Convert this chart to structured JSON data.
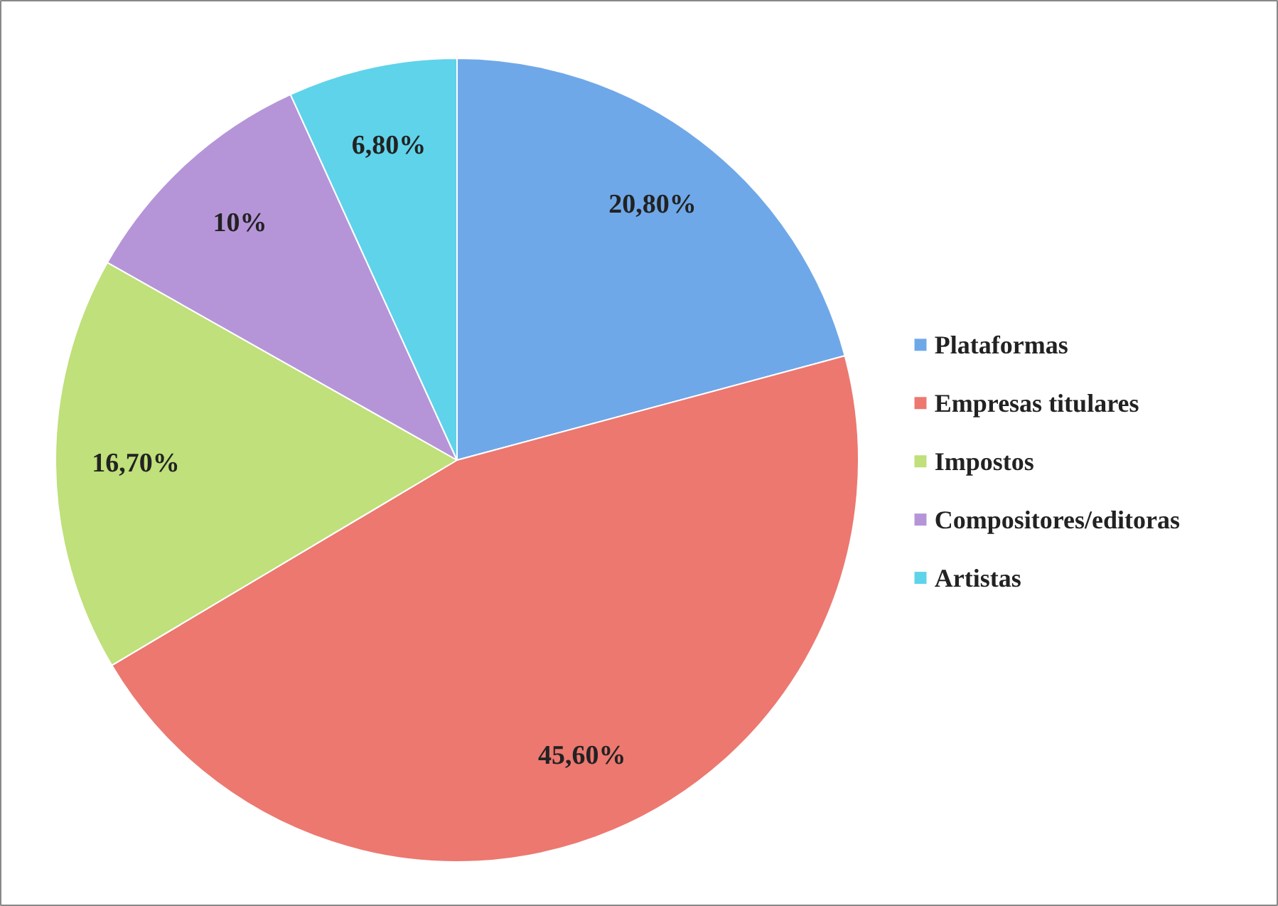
{
  "chart_data": {
    "type": "pie",
    "categories": [
      "Plataformas",
      "Empresas titulares",
      "Impostos",
      "Compositores/editoras",
      "Artistas"
    ],
    "values": [
      20.8,
      45.6,
      16.7,
      10,
      6.8
    ],
    "value_labels": [
      "20,80%",
      "45,60%",
      "16,70%",
      "10%",
      "6,80%"
    ],
    "colors": [
      "#6fa8e8",
      "#ec7870",
      "#bfe07a",
      "#b595d8",
      "#5fd3ea"
    ],
    "legend": "right"
  }
}
